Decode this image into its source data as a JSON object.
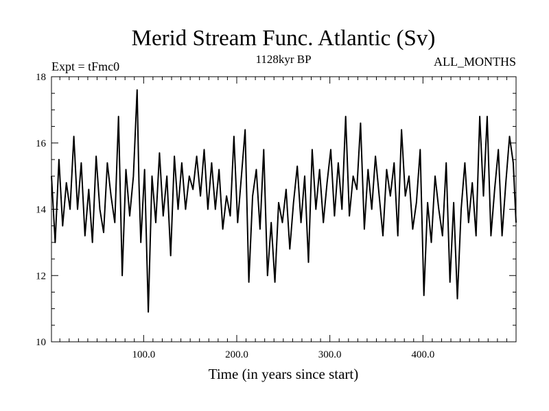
{
  "chart_data": {
    "type": "line",
    "title": "Merid Stream Func. Atlantic (Sv)",
    "subtitle_left": "Expt = tFmc0",
    "subtitle_center": "1128kyr BP",
    "subtitle_right": "ALL_MONTHS",
    "xlabel": "Time (in years since start)",
    "ylabel": "",
    "xlim": [
      1,
      500
    ],
    "ylim": [
      10,
      18
    ],
    "xticks_major": [
      100,
      200,
      300,
      400
    ],
    "xtick_labels": [
      "100.0",
      "200.0",
      "300.0",
      "400.0"
    ],
    "yticks_major": [
      10,
      12,
      14,
      16,
      18
    ],
    "ytick_labels": [
      "10",
      "12",
      "14",
      "16",
      "18"
    ],
    "series": [
      {
        "name": "Merid Stream Func. Atlantic",
        "color": "#000000",
        "x": [
          1,
          5,
          9,
          13,
          17,
          21,
          25,
          29,
          33,
          37,
          41,
          45,
          49,
          53,
          57,
          61,
          65,
          69,
          73,
          77,
          81,
          85,
          89,
          93,
          95,
          97,
          101,
          105,
          109,
          113,
          117,
          121,
          125,
          129,
          133,
          137,
          141,
          145,
          149,
          153,
          157,
          161,
          165,
          169,
          173,
          177,
          181,
          185,
          189,
          193,
          197,
          201,
          205,
          209,
          213,
          217,
          221,
          225,
          229,
          233,
          237,
          241,
          245,
          249,
          253,
          257,
          261,
          265,
          269,
          273,
          277,
          281,
          285,
          289,
          293,
          297,
          301,
          305,
          309,
          313,
          317,
          321,
          325,
          329,
          333,
          337,
          341,
          345,
          349,
          353,
          357,
          361,
          365,
          369,
          373,
          377,
          381,
          385,
          389,
          393,
          397,
          401,
          405,
          409,
          413,
          417,
          421,
          425,
          429,
          433,
          437,
          441,
          445,
          449,
          453,
          457,
          461,
          465,
          469,
          473,
          477,
          481,
          485,
          489,
          493,
          497,
          500
        ],
        "values": [
          15.0,
          13.0,
          15.5,
          13.5,
          14.8,
          14.0,
          16.2,
          14.0,
          15.4,
          13.2,
          14.6,
          13.0,
          15.6,
          14.0,
          13.3,
          15.4,
          14.4,
          13.6,
          16.8,
          12.0,
          15.2,
          13.8,
          15.0,
          17.6,
          14.8,
          13.0,
          15.2,
          10.9,
          15.0,
          13.6,
          15.7,
          13.8,
          15.0,
          12.6,
          15.6,
          14.0,
          15.4,
          14.0,
          15.0,
          14.6,
          15.6,
          14.4,
          15.8,
          14.0,
          15.4,
          14.0,
          15.2,
          13.4,
          14.4,
          13.8,
          16.2,
          13.6,
          15.0,
          16.4,
          11.8,
          14.4,
          15.2,
          13.4,
          15.8,
          12.0,
          13.6,
          11.8,
          14.2,
          13.6,
          14.6,
          12.8,
          14.2,
          15.3,
          13.6,
          15.0,
          12.4,
          15.8,
          14.0,
          15.2,
          13.6,
          14.8,
          15.8,
          13.8,
          15.4,
          14.0,
          16.8,
          13.8,
          15.0,
          14.6,
          16.6,
          13.4,
          15.2,
          14.0,
          15.6,
          14.4,
          13.2,
          15.2,
          14.4,
          15.4,
          13.2,
          16.4,
          14.4,
          15.0,
          13.4,
          14.2,
          15.8,
          11.4,
          14.2,
          13.0,
          15.0,
          14.0,
          13.2,
          15.4,
          11.8,
          14.2,
          11.3,
          14.0,
          15.4,
          13.6,
          14.8,
          13.2,
          16.8,
          14.4,
          16.8,
          13.2,
          14.6,
          15.8,
          13.2,
          14.8,
          16.2,
          15.4,
          13.6
        ]
      }
    ]
  }
}
